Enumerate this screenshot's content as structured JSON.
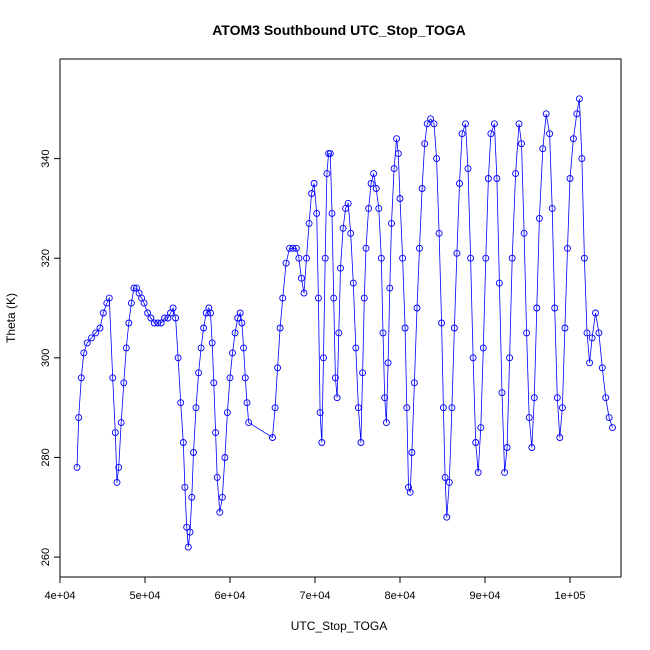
{
  "chart_data": {
    "type": "line",
    "title": "ATOM3 Southbound UTC_Stop_TOGA",
    "xlabel": "UTC_Stop_TOGA",
    "ylabel": "Theta (K)",
    "xlim": [
      40000,
      106000
    ],
    "ylim": [
      256,
      360
    ],
    "x_ticks": [
      40000,
      50000,
      60000,
      70000,
      80000,
      90000,
      100000
    ],
    "x_tick_labels": [
      "4e+04",
      "5e+04",
      "6e+04",
      "7e+04",
      "8e+04",
      "9e+04",
      "1e+05"
    ],
    "y_ticks": [
      260,
      280,
      300,
      320,
      340
    ],
    "y_tick_labels": [
      "260",
      "280",
      "300",
      "320",
      "340"
    ],
    "series_color": "#0000ff",
    "marker": "open-circle",
    "grid": false,
    "series": [
      {
        "name": "Theta",
        "points": [
          [
            42000,
            278
          ],
          [
            42200,
            288
          ],
          [
            42500,
            296
          ],
          [
            42800,
            301
          ],
          [
            43200,
            303
          ],
          [
            43700,
            304
          ],
          [
            44200,
            305
          ],
          [
            44700,
            306
          ],
          [
            45100,
            309
          ],
          [
            45500,
            311
          ],
          [
            45800,
            312
          ],
          [
            46200,
            296
          ],
          [
            46500,
            285
          ],
          [
            46700,
            275
          ],
          [
            46900,
            278
          ],
          [
            47200,
            287
          ],
          [
            47500,
            295
          ],
          [
            47800,
            302
          ],
          [
            48100,
            307
          ],
          [
            48400,
            311
          ],
          [
            48700,
            314
          ],
          [
            49000,
            314
          ],
          [
            49300,
            313
          ],
          [
            49600,
            312
          ],
          [
            49900,
            311
          ],
          [
            50300,
            309
          ],
          [
            50700,
            308
          ],
          [
            51100,
            307
          ],
          [
            51500,
            307
          ],
          [
            51900,
            307
          ],
          [
            52300,
            308
          ],
          [
            52700,
            308
          ],
          [
            53000,
            309
          ],
          [
            53300,
            310
          ],
          [
            53600,
            308
          ],
          [
            53900,
            300
          ],
          [
            54200,
            291
          ],
          [
            54500,
            283
          ],
          [
            54700,
            274
          ],
          [
            54900,
            266
          ],
          [
            55100,
            262
          ],
          [
            55300,
            265
          ],
          [
            55500,
            272
          ],
          [
            55700,
            281
          ],
          [
            56000,
            290
          ],
          [
            56300,
            297
          ],
          [
            56600,
            302
          ],
          [
            56900,
            306
          ],
          [
            57200,
            309
          ],
          [
            57500,
            310
          ],
          [
            57700,
            309
          ],
          [
            57900,
            303
          ],
          [
            58100,
            295
          ],
          [
            58300,
            285
          ],
          [
            58500,
            276
          ],
          [
            58800,
            269
          ],
          [
            59100,
            272
          ],
          [
            59400,
            280
          ],
          [
            59700,
            289
          ],
          [
            60000,
            296
          ],
          [
            60300,
            301
          ],
          [
            60600,
            305
          ],
          [
            60900,
            308
          ],
          [
            61200,
            309
          ],
          [
            61400,
            307
          ],
          [
            61600,
            302
          ],
          [
            61800,
            296
          ],
          [
            62000,
            291
          ],
          [
            62200,
            287
          ],
          [
            65000,
            284
          ],
          [
            65300,
            290
          ],
          [
            65600,
            298
          ],
          [
            65900,
            306
          ],
          [
            66200,
            312
          ],
          [
            66600,
            319
          ],
          [
            67000,
            322
          ],
          [
            67400,
            322
          ],
          [
            67800,
            322
          ],
          [
            68100,
            320
          ],
          [
            68400,
            316
          ],
          [
            68700,
            313
          ],
          [
            69000,
            320
          ],
          [
            69300,
            327
          ],
          [
            69600,
            333
          ],
          [
            69900,
            335
          ],
          [
            70200,
            329
          ],
          [
            70400,
            312
          ],
          [
            70600,
            289
          ],
          [
            70800,
            283
          ],
          [
            71000,
            300
          ],
          [
            71200,
            320
          ],
          [
            71400,
            337
          ],
          [
            71600,
            341
          ],
          [
            71800,
            341
          ],
          [
            72000,
            329
          ],
          [
            72200,
            312
          ],
          [
            72400,
            296
          ],
          [
            72600,
            292
          ],
          [
            72800,
            305
          ],
          [
            73000,
            318
          ],
          [
            73300,
            326
          ],
          [
            73600,
            330
          ],
          [
            73900,
            331
          ],
          [
            74200,
            325
          ],
          [
            74500,
            315
          ],
          [
            74800,
            302
          ],
          [
            75100,
            290
          ],
          [
            75400,
            283
          ],
          [
            75600,
            297
          ],
          [
            75800,
            312
          ],
          [
            76000,
            322
          ],
          [
            76300,
            330
          ],
          [
            76600,
            335
          ],
          [
            76900,
            337
          ],
          [
            77200,
            334
          ],
          [
            77500,
            330
          ],
          [
            77800,
            320
          ],
          [
            78000,
            305
          ],
          [
            78200,
            292
          ],
          [
            78400,
            287
          ],
          [
            78600,
            299
          ],
          [
            78800,
            314
          ],
          [
            79000,
            327
          ],
          [
            79300,
            338
          ],
          [
            79600,
            344
          ],
          [
            79800,
            341
          ],
          [
            80000,
            332
          ],
          [
            80300,
            320
          ],
          [
            80600,
            306
          ],
          [
            80800,
            290
          ],
          [
            81000,
            274
          ],
          [
            81200,
            273
          ],
          [
            81400,
            281
          ],
          [
            81700,
            295
          ],
          [
            82000,
            310
          ],
          [
            82300,
            322
          ],
          [
            82600,
            334
          ],
          [
            82900,
            343
          ],
          [
            83200,
            347
          ],
          [
            83600,
            348
          ],
          [
            84000,
            347
          ],
          [
            84300,
            340
          ],
          [
            84600,
            325
          ],
          [
            84900,
            307
          ],
          [
            85100,
            290
          ],
          [
            85300,
            276
          ],
          [
            85500,
            268
          ],
          [
            85800,
            275
          ],
          [
            86100,
            290
          ],
          [
            86400,
            306
          ],
          [
            86700,
            321
          ],
          [
            87000,
            335
          ],
          [
            87300,
            345
          ],
          [
            87700,
            347
          ],
          [
            88000,
            338
          ],
          [
            88300,
            320
          ],
          [
            88600,
            300
          ],
          [
            88900,
            283
          ],
          [
            89200,
            277
          ],
          [
            89500,
            286
          ],
          [
            89800,
            302
          ],
          [
            90100,
            320
          ],
          [
            90400,
            336
          ],
          [
            90700,
            345
          ],
          [
            91100,
            347
          ],
          [
            91400,
            336
          ],
          [
            91700,
            315
          ],
          [
            92000,
            293
          ],
          [
            92300,
            277
          ],
          [
            92600,
            282
          ],
          [
            92900,
            300
          ],
          [
            93200,
            320
          ],
          [
            93600,
            337
          ],
          [
            94000,
            347
          ],
          [
            94300,
            343
          ],
          [
            94600,
            325
          ],
          [
            94900,
            305
          ],
          [
            95200,
            288
          ],
          [
            95500,
            282
          ],
          [
            95800,
            292
          ],
          [
            96100,
            310
          ],
          [
            96400,
            328
          ],
          [
            96800,
            342
          ],
          [
            97200,
            349
          ],
          [
            97600,
            345
          ],
          [
            97900,
            330
          ],
          [
            98200,
            310
          ],
          [
            98500,
            292
          ],
          [
            98800,
            284
          ],
          [
            99100,
            290
          ],
          [
            99400,
            306
          ],
          [
            99700,
            322
          ],
          [
            100000,
            336
          ],
          [
            100400,
            344
          ],
          [
            100800,
            349
          ],
          [
            101100,
            352
          ],
          [
            101400,
            340
          ],
          [
            101700,
            320
          ],
          [
            102000,
            305
          ],
          [
            102300,
            299
          ],
          [
            102600,
            304
          ],
          [
            103000,
            309
          ],
          [
            103400,
            305
          ],
          [
            103800,
            298
          ],
          [
            104200,
            292
          ],
          [
            104600,
            288
          ],
          [
            105000,
            286
          ]
        ]
      }
    ]
  }
}
